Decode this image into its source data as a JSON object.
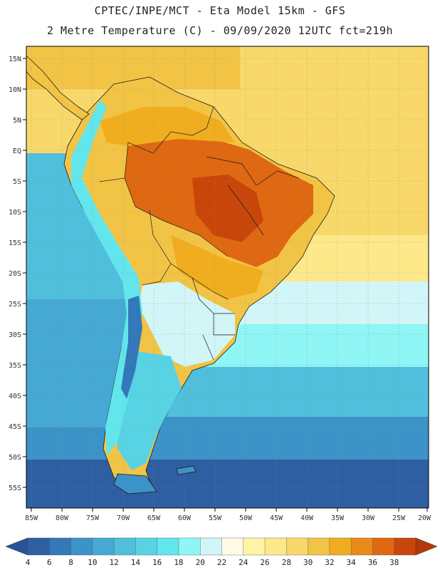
{
  "title": {
    "line1": "CPTEC/INPE/MCT -  Eta Model 15km - GFS",
    "line2": "2 Metre Temperature (C) - 09/09/2020 12UTC fct=219h"
  },
  "latitudes": [
    "15N",
    "10N",
    "5N",
    "EQ",
    "5S",
    "10S",
    "15S",
    "20S",
    "25S",
    "30S",
    "35S",
    "40S",
    "45S",
    "50S",
    "55S"
  ],
  "longitudes": [
    "85W",
    "80W",
    "75W",
    "70W",
    "65W",
    "60W",
    "55W",
    "50W",
    "45W",
    "40W",
    "35W",
    "30W",
    "25W",
    "20W"
  ],
  "colorbar": {
    "labels": [
      "4",
      "6",
      "8",
      "10",
      "12",
      "14",
      "16",
      "18",
      "20",
      "22",
      "24",
      "26",
      "28",
      "30",
      "32",
      "34",
      "36",
      "38"
    ],
    "colors": [
      "#2e5fa3",
      "#3378b8",
      "#3c93c8",
      "#45a9d4",
      "#4fbfdc",
      "#58d3e4",
      "#62e6ec",
      "#8ff5f5",
      "#d2f5f7",
      "#fffbe6",
      "#fff3a6",
      "#fde88a",
      "#f8d86a",
      "#f2c445",
      "#f0ad1f",
      "#e98a1a",
      "#df6812",
      "#c9460a"
    ],
    "low_color": "#2a5296",
    "high_color": "#b3380a"
  },
  "colors": {
    "ocean_south": "#2e5fa3",
    "ocean_mid": "#4fbfdc",
    "ocean_cool": "#8ff5f5",
    "ocean_warm": "#fde88a",
    "ocean_tropic": "#f8d86a",
    "land_hot": "#df6812",
    "land_warm": "#f2c445",
    "andes": "#62e6ec",
    "patagonia": "#58d3e4"
  }
}
